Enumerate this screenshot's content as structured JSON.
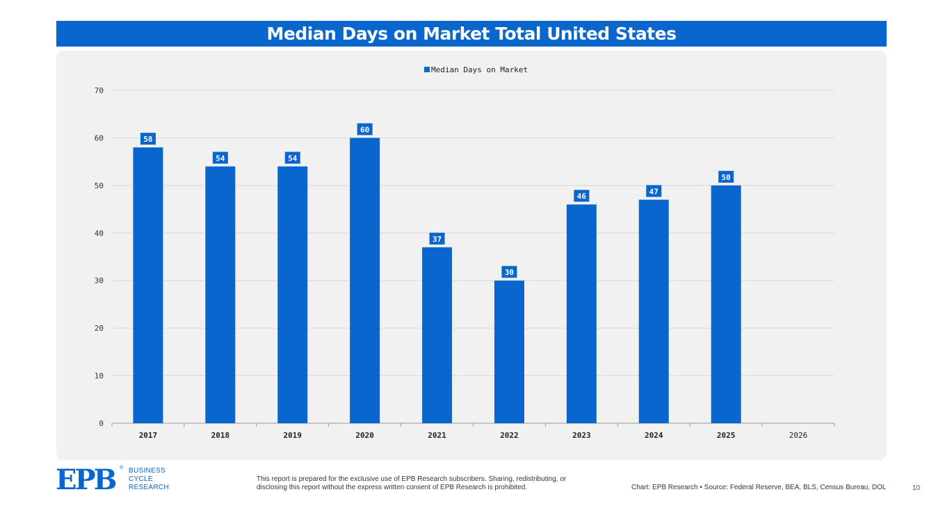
{
  "title": "Median Days on Market Total United States",
  "chart_data": {
    "type": "bar",
    "title": "Median Days on Market Total United States",
    "categories": [
      "2017",
      "2018",
      "2019",
      "2020",
      "2021",
      "2022",
      "2023",
      "2024",
      "2025",
      "2026"
    ],
    "series": [
      {
        "name": "Median Days on Market",
        "values": [
          58,
          54,
          54,
          60,
          37,
          30,
          46,
          47,
          50,
          null
        ]
      }
    ],
    "ylim": [
      0,
      70
    ],
    "yticks": [
      0,
      10,
      20,
      30,
      40,
      50,
      60,
      70
    ],
    "grid": true,
    "legend": "top-center",
    "data_labels": true,
    "colors": {
      "bar": "#0866cc",
      "grid": "#d9d9d9",
      "axis": "#999999"
    }
  },
  "footer": {
    "logo_mark": "EPB",
    "logo_reg": "®",
    "logo_line1": "BUSINESS",
    "logo_line2": "CYCLE",
    "logo_line3": "RESEARCH",
    "disclaimer": "This report is prepared for the exclusive use of EPB Research subscribers. Sharing, redistributing, or disclosing this report without the express written consent of EPB Research is prohibited.",
    "credit": "Chart: EPB Research  •  Source: Federal Reserve, BEA, BLS, Census Bureau, DOL",
    "page_number": "10"
  }
}
